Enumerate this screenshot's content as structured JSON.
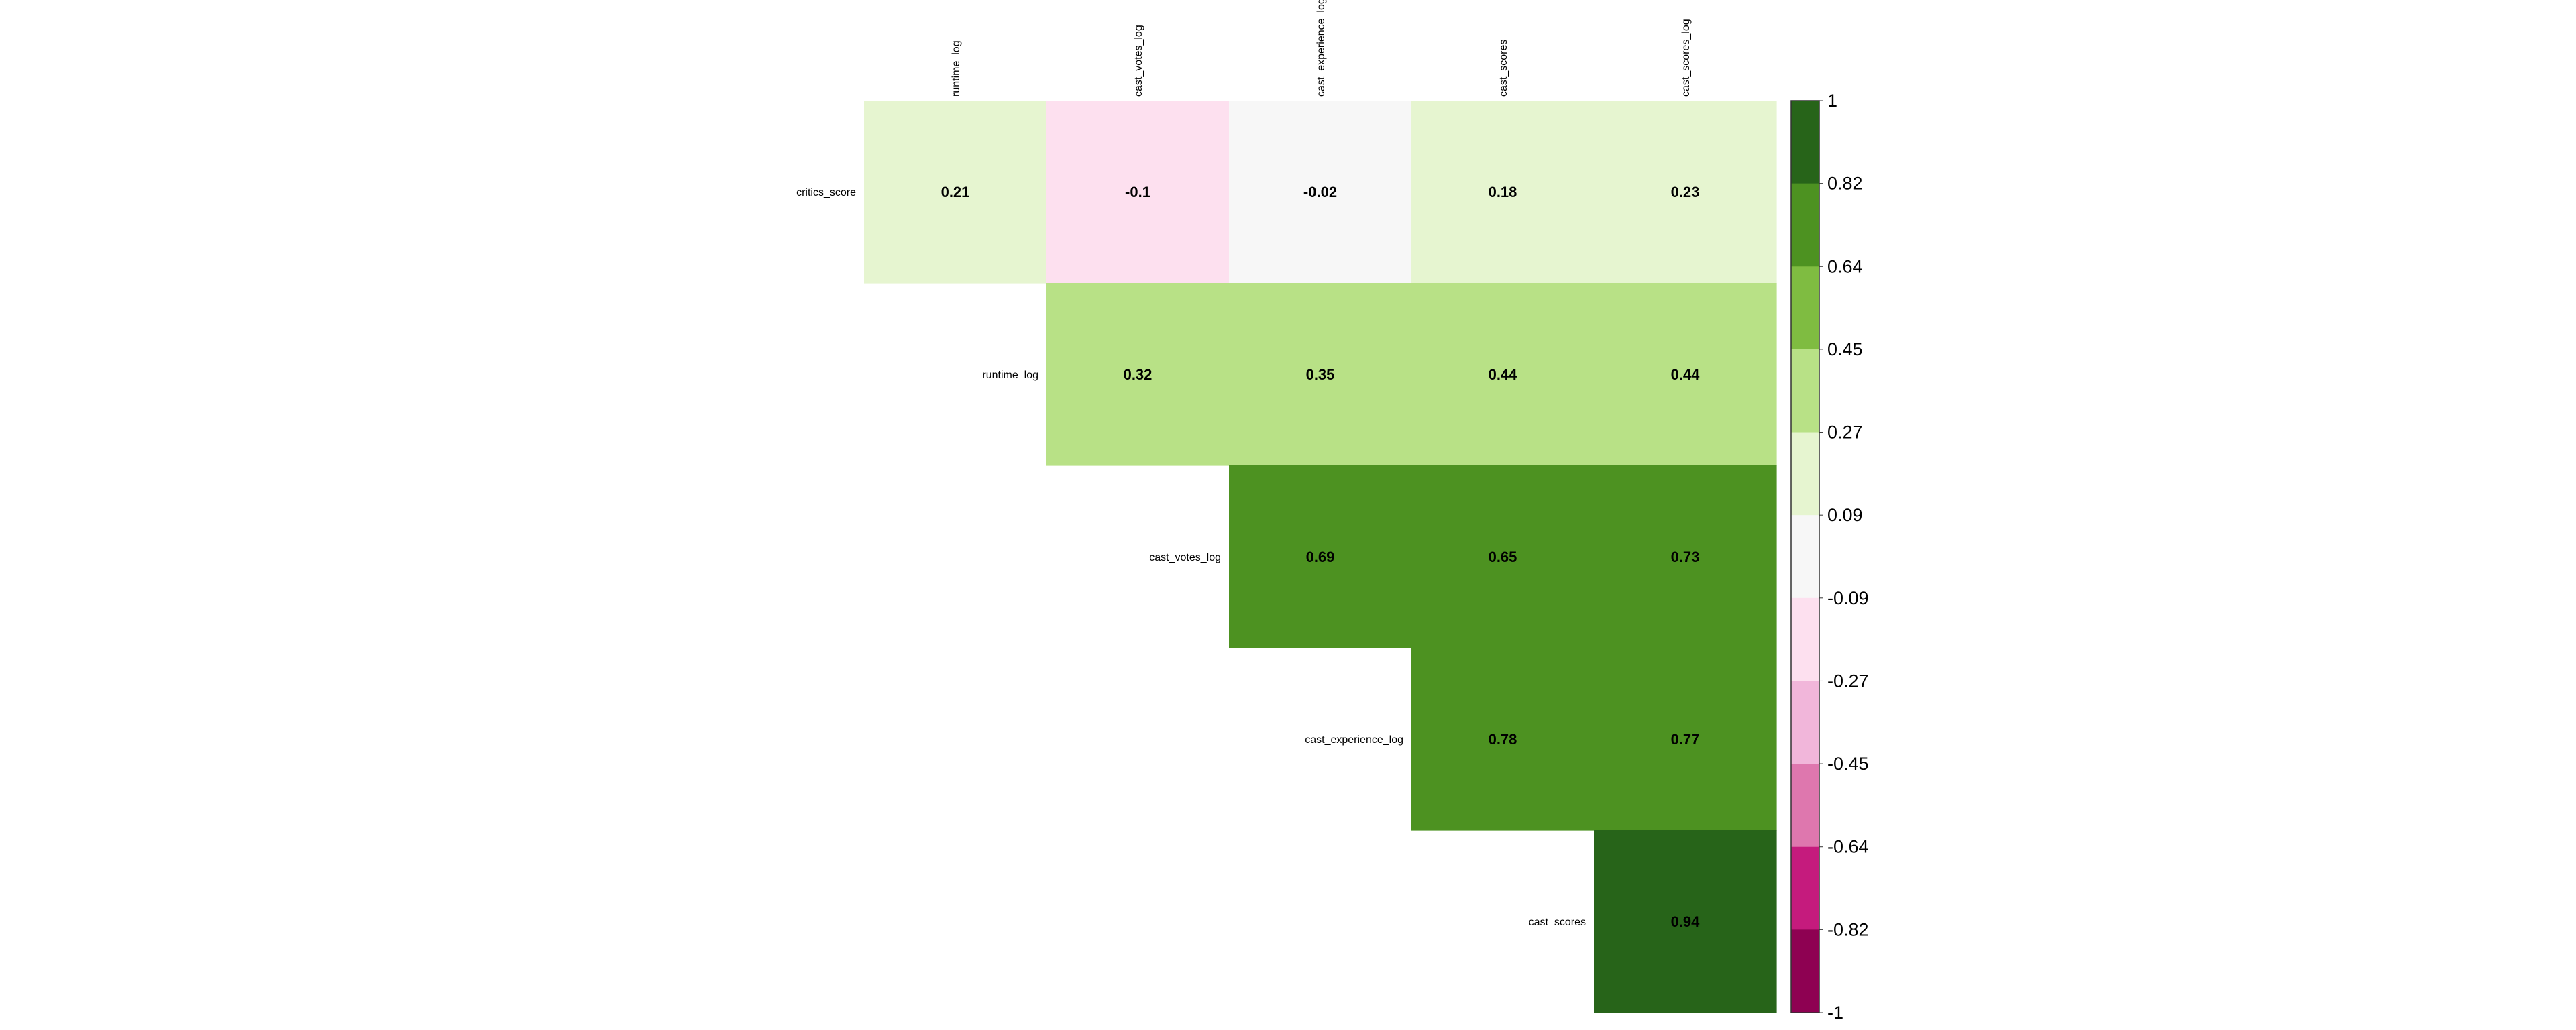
{
  "chart_data": {
    "type": "heatmap",
    "title": "",
    "row_labels": [
      "critics_score",
      "runtime_log",
      "cast_votes_log",
      "cast_experience_log",
      "cast_scores"
    ],
    "col_labels": [
      "runtime_log",
      "cast_votes_log",
      "cast_experience_log",
      "cast_scores",
      "cast_scores_log"
    ],
    "matrix": [
      [
        0.21,
        -0.1,
        -0.02,
        0.18,
        0.23
      ],
      [
        null,
        0.32,
        0.35,
        0.44,
        0.44
      ],
      [
        null,
        null,
        0.69,
        0.65,
        0.73
      ],
      [
        null,
        null,
        null,
        0.78,
        0.77
      ],
      [
        null,
        null,
        null,
        null,
        0.94
      ]
    ],
    "value_labels": [
      [
        "0.21",
        "-0.1",
        "-0.02",
        "0.18",
        "0.23"
      ],
      [
        "",
        "0.32",
        "0.35",
        "0.44",
        "0.44"
      ],
      [
        "",
        "",
        "0.69",
        "0.65",
        "0.73"
      ],
      [
        "",
        "",
        "",
        "0.78",
        "0.77"
      ],
      [
        "",
        "",
        "",
        "",
        "0.94"
      ]
    ],
    "color_scale": {
      "range": [
        -1,
        1
      ],
      "bins": [
        {
          "from": 0.82,
          "to": 1.0,
          "color": "#276419"
        },
        {
          "from": 0.64,
          "to": 0.82,
          "color": "#4d9221"
        },
        {
          "from": 0.45,
          "to": 0.64,
          "color": "#7fbc41"
        },
        {
          "from": 0.27,
          "to": 0.45,
          "color": "#b8e186"
        },
        {
          "from": 0.09,
          "to": 0.27,
          "color": "#e6f5d0"
        },
        {
          "from": -0.09,
          "to": 0.09,
          "color": "#f7f7f7"
        },
        {
          "from": -0.27,
          "to": -0.09,
          "color": "#fde0ef"
        },
        {
          "from": -0.45,
          "to": -0.27,
          "color": "#f1b6da"
        },
        {
          "from": -0.64,
          "to": -0.45,
          "color": "#de77ae"
        },
        {
          "from": -0.82,
          "to": -0.64,
          "color": "#c51b7d"
        },
        {
          "from": -1.0,
          "to": -0.82,
          "color": "#8e0152"
        }
      ],
      "tick_labels": [
        "1",
        "0.82",
        "0.64",
        "0.45",
        "0.27",
        "0.09",
        "-0.09",
        "-0.27",
        "-0.45",
        "-0.64",
        "-0.82",
        "-1"
      ]
    },
    "legend_placement": "right"
  }
}
